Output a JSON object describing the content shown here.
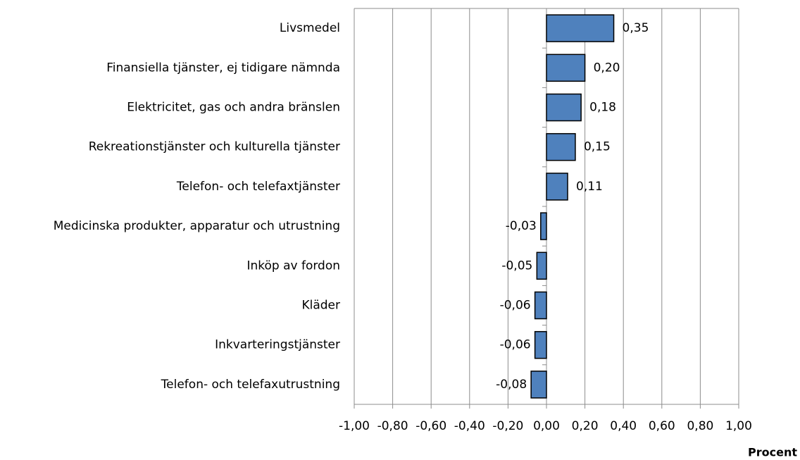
{
  "chart_data": {
    "type": "hbar",
    "categories": [
      "Livsmedel",
      "Finansiella tjänster, ej tidigare nämnda",
      "Elektricitet, gas och andra bränslen",
      "Rekreationstjänster och kulturella tjänster",
      "Telefon- och telefaxtjänster",
      "Medicinska produkter, apparatur och utrustning",
      "Inköp av fordon",
      "Kläder",
      "Inkvarteringstjänster",
      "Telefon- och telefaxutrustning"
    ],
    "values": [
      0.35,
      0.2,
      0.18,
      0.15,
      0.11,
      -0.03,
      -0.05,
      -0.06,
      -0.06,
      -0.08
    ],
    "value_labels": [
      "0,35",
      "0,20",
      "0,18",
      "0,15",
      "0,11",
      "-0,03",
      "-0,05",
      "-0,06",
      "-0,06",
      "-0,08"
    ],
    "color": "#4f81bd",
    "xlabel": "Procent",
    "xlim": [
      -1,
      1
    ],
    "xticks": [
      {
        "value": -1,
        "label": "-1,00"
      },
      {
        "value": -0.8,
        "label": "-0,80"
      },
      {
        "value": -0.6,
        "label": "-0,60"
      },
      {
        "value": -0.4,
        "label": "-0,40"
      },
      {
        "value": -0.2,
        "label": "-0,20"
      },
      {
        "value": 0,
        "label": "0,00"
      },
      {
        "value": 0.2,
        "label": "0,20"
      },
      {
        "value": 0.4,
        "label": "0,40"
      },
      {
        "value": 0.6,
        "label": "0,60"
      },
      {
        "value": 0.8,
        "label": "0,80"
      },
      {
        "value": 1,
        "label": "1,00"
      }
    ],
    "grid": true
  }
}
